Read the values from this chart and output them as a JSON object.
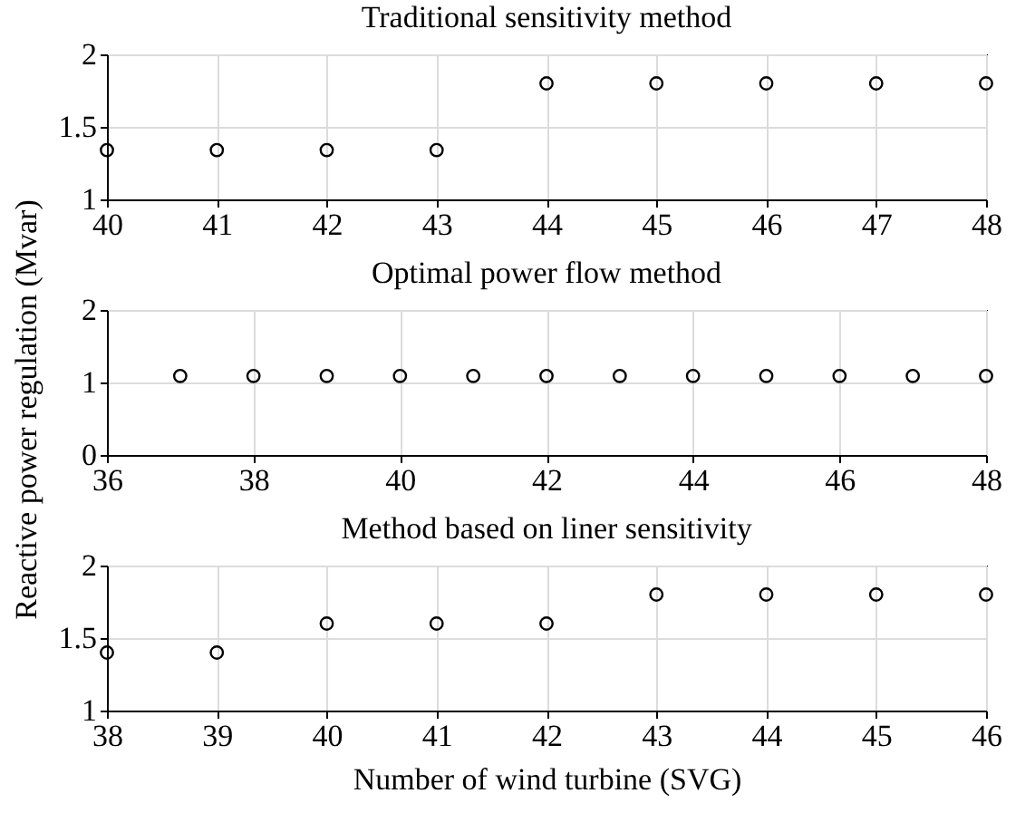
{
  "chart_data": [
    {
      "type": "scatter",
      "title": "Traditional sensitivity method",
      "x": [
        40,
        41,
        42,
        43,
        44,
        45,
        46,
        47,
        48
      ],
      "xlim": [
        40,
        48
      ],
      "xticks": [
        40,
        41,
        42,
        43,
        44,
        45,
        46,
        47,
        48
      ],
      "ylim": [
        1,
        2
      ],
      "yticks": [
        1,
        1.5,
        2
      ],
      "marker": "circle",
      "grid": true,
      "series": [
        {
          "color": "#000000",
          "values": [
            1.34,
            1.34,
            1.34,
            1.34,
            1.8,
            1.8,
            1.8,
            1.8,
            1.8
          ]
        }
      ]
    },
    {
      "type": "scatter",
      "title": "Optimal power flow method",
      "ylabel": "Reactive power regulation (Mvar)",
      "x": [
        37,
        38,
        39,
        40,
        41,
        42,
        43,
        44,
        45,
        46,
        47,
        48
      ],
      "xlim": [
        36,
        48
      ],
      "xticks": [
        36,
        38,
        40,
        42,
        44,
        46,
        48
      ],
      "ylim": [
        0,
        2
      ],
      "yticks": [
        0,
        1,
        2
      ],
      "marker": "circle",
      "grid": true,
      "series": [
        {
          "color": "#000000",
          "values": [
            1.09,
            1.09,
            1.09,
            1.09,
            1.09,
            1.09,
            1.09,
            1.09,
            1.09,
            1.09,
            1.09,
            1.09
          ]
        }
      ]
    },
    {
      "type": "scatter",
      "title": "Method based on liner sensitivity",
      "xlabel": "Number of wind turbine (SVG)",
      "x": [
        38,
        39,
        40,
        41,
        42,
        43,
        44,
        45,
        46
      ],
      "xlim": [
        38,
        46
      ],
      "xticks": [
        38,
        39,
        40,
        41,
        42,
        43,
        44,
        45,
        46
      ],
      "ylim": [
        1,
        2
      ],
      "yticks": [
        1,
        1.5,
        2
      ],
      "marker": "circle",
      "grid": true,
      "series": [
        {
          "color": "#000000",
          "values": [
            1.4,
            1.4,
            1.6,
            1.6,
            1.6,
            1.8,
            1.8,
            1.8,
            1.8
          ]
        }
      ]
    }
  ]
}
